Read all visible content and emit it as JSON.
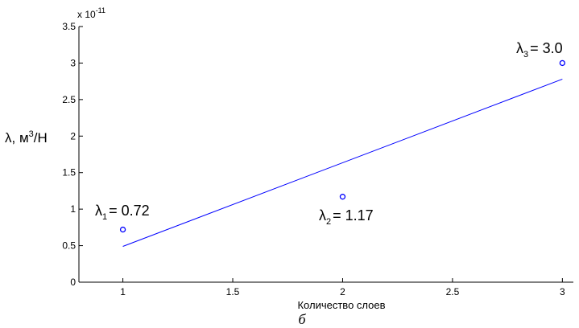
{
  "chart_data": {
    "type": "scatter",
    "xlabel": "Количество слоев",
    "ylabel": "λ, м³/Н",
    "ylabel_parts": {
      "pre": "λ, м",
      "sup": "3",
      "post": "/Н"
    },
    "xlim": [
      0.8,
      3.05
    ],
    "ylim": [
      0,
      3.5
    ],
    "x_ticks": [
      1,
      1.5,
      2,
      2.5,
      3
    ],
    "x_tick_labels": [
      "1",
      "1.5",
      "2",
      "2.5",
      "3"
    ],
    "y_ticks": [
      0,
      0.5,
      1,
      1.5,
      2,
      2.5,
      3,
      3.5
    ],
    "y_tick_labels": [
      "0",
      "0.5",
      "1",
      "1.5",
      "2",
      "2.5",
      "3",
      "3.5"
    ],
    "y_exponent": {
      "base": "x 10",
      "exp": "-11"
    },
    "grid": false,
    "series": [
      {
        "kind": "points",
        "marker": "circle",
        "x": [
          1,
          2,
          3
        ],
        "y": [
          0.72,
          1.17,
          3.0
        ],
        "color": "#0000ff"
      },
      {
        "kind": "fit-line",
        "x": [
          1,
          3
        ],
        "y": [
          0.49,
          2.78
        ],
        "color": "#0000ff"
      }
    ],
    "annotations": [
      {
        "sym": "λ",
        "sub": "1",
        "text": "= 0.72"
      },
      {
        "sym": "λ",
        "sub": "2",
        "text": "= 1.17"
      },
      {
        "sym": "λ",
        "sub": "3",
        "text": "= 3.0"
      }
    ],
    "caption": "б"
  }
}
